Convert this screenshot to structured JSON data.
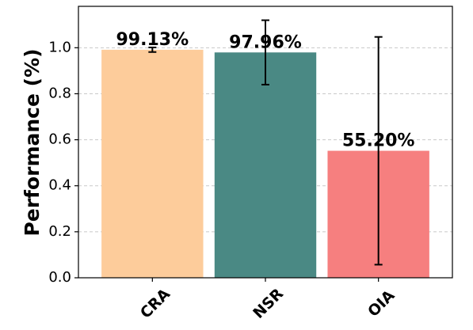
{
  "chart_data": {
    "type": "bar",
    "categories": [
      "CRA",
      "NSR",
      "OIA"
    ],
    "values": [
      0.9913,
      0.9796,
      0.552
    ],
    "errors": [
      0.01,
      0.14,
      0.495
    ],
    "data_labels": [
      "99.13%",
      "97.96%",
      "55.20%"
    ],
    "colors": [
      "#fdcc9b",
      "#4a8984",
      "#f67f7f"
    ],
    "title": "",
    "xlabel": "",
    "ylabel": "Performance (%)",
    "ylim": [
      0,
      1.18
    ],
    "yticks": [
      "0.0",
      "0.2",
      "0.4",
      "0.6",
      "0.8",
      "1.0"
    ],
    "ytick_values": [
      0,
      0.2,
      0.4,
      0.6,
      0.8,
      1.0
    ],
    "grid": "y-dashed",
    "legend": "none"
  }
}
